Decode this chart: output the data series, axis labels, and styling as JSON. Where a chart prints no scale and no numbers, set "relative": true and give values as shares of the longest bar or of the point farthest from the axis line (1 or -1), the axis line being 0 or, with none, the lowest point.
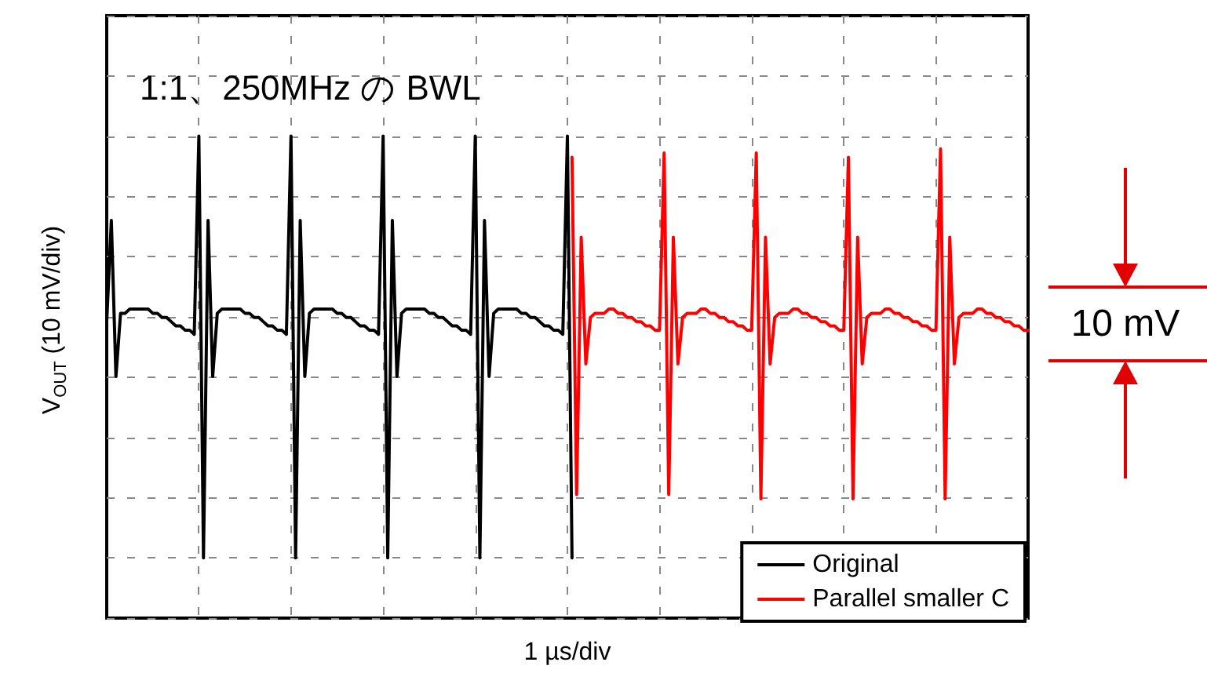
{
  "chart_data": {
    "type": "line",
    "title": "1:1、250MHz の BWL",
    "xlabel": "1 µs/div",
    "ylabel": "V$_{OUT}$ (10 mV/div)",
    "annotations": [
      "10 mV"
    ],
    "relative": true,
    "grid": true,
    "legend": "bottom right",
    "marker": "none",
    "line_style": "solid",
    "categories": [
      null,
      null,
      null,
      null,
      null,
      null,
      null,
      null,
      null,
      null,
      null,
      null,
      null,
      null,
      null,
      null,
      null,
      null,
      null,
      null,
      null,
      null,
      null,
      null,
      null,
      null,
      null,
      null,
      null,
      null,
      null,
      null,
      null,
      null,
      null,
      null,
      null,
      null,
      null,
      null,
      null,
      null,
      null,
      null,
      null,
      null,
      null,
      null,
      null,
      null,
      null,
      null,
      null,
      null,
      null,
      null,
      null,
      null,
      null,
      null,
      null,
      null,
      null,
      null,
      null,
      null,
      null,
      null,
      null,
      null,
      null,
      null,
      null,
      null,
      null,
      null,
      null,
      null,
      null,
      null,
      null,
      null,
      null,
      null,
      null,
      null,
      null,
      null,
      null,
      null,
      null,
      null,
      null,
      null,
      null,
      null,
      null,
      null,
      null,
      null,
      null,
      null,
      null,
      null,
      null,
      null,
      null,
      null,
      null,
      null,
      null,
      null,
      null,
      null,
      null,
      null,
      null,
      null,
      null,
      null,
      null,
      null,
      null,
      null,
      null,
      null,
      null,
      null,
      null,
      null,
      null,
      null,
      null,
      null,
      null,
      null,
      null,
      null,
      null,
      null,
      null,
      null,
      null,
      null,
      null,
      null,
      null,
      null,
      null,
      null,
      null,
      null,
      null,
      null,
      null,
      null,
      null,
      null,
      null,
      null,
      null,
      null,
      null,
      null,
      null,
      null,
      null,
      null,
      null,
      null,
      null,
      null,
      null,
      null,
      null,
      null,
      null,
      null,
      null,
      null,
      null,
      null,
      null,
      null,
      null,
      null,
      null,
      null,
      null,
      null,
      null,
      null,
      null,
      null,
      null,
      null,
      null,
      null,
      null,
      null,
      null
    ],
    "series": [
      {
        "name": "Original",
        "color": "#000000",
        "values": [
          0.56,
          0.8,
          0.43,
          0.58,
          0.58,
          0.59,
          0.59,
          0.59,
          0.59,
          0.59,
          0.58,
          0.58,
          0.57,
          0.57,
          0.56,
          0.55,
          0.55,
          0.54,
          0.54,
          0.53,
          1.0,
          0.0,
          0.8,
          0.43,
          0.58,
          0.59,
          0.59,
          0.59,
          0.59,
          0.59,
          0.58,
          0.58,
          0.57,
          0.57,
          0.56,
          0.55,
          0.55,
          0.54,
          0.54,
          0.53,
          1.0,
          0.0,
          0.8,
          0.43,
          0.58,
          0.59,
          0.59,
          0.59,
          0.59,
          0.59,
          0.58,
          0.58,
          0.57,
          0.57,
          0.56,
          0.55,
          0.55,
          0.54,
          0.54,
          0.53,
          1.0,
          0.0,
          0.8,
          0.43,
          0.58,
          0.59,
          0.59,
          0.59,
          0.59,
          0.59,
          0.58,
          0.58,
          0.57,
          0.57,
          0.56,
          0.55,
          0.55,
          0.54,
          0.54,
          0.53,
          1.0,
          0.0,
          0.8,
          0.43,
          0.58,
          0.59,
          0.59,
          0.59,
          0.59,
          0.59,
          0.58,
          0.58,
          0.57,
          0.57,
          0.56,
          0.55,
          0.55,
          0.54,
          0.54,
          0.53,
          1.0,
          0.0,
          null,
          null,
          null,
          null,
          null,
          null,
          null,
          null,
          null,
          null,
          null,
          null,
          null,
          null,
          null,
          null,
          null,
          null,
          null,
          null,
          null,
          null,
          null,
          null,
          null,
          null,
          null,
          null,
          null,
          null,
          null,
          null,
          null,
          null,
          null,
          null,
          null,
          null,
          null,
          null,
          null,
          null,
          null,
          null,
          null,
          null,
          null,
          null,
          null,
          null,
          null,
          null,
          null,
          null,
          null,
          null,
          null,
          null,
          null,
          null,
          null,
          null,
          null,
          null,
          null,
          null,
          null,
          null,
          null,
          null,
          null,
          null,
          null,
          null,
          null,
          null,
          null,
          null,
          null,
          null,
          null,
          null,
          null,
          null,
          null,
          null,
          null,
          null,
          null,
          null,
          null,
          null,
          null,
          null,
          null,
          null,
          null,
          null,
          null
        ]
      },
      {
        "name": "Parallel smaller C",
        "color": "#ff0000",
        "values": [
          null,
          null,
          null,
          null,
          null,
          null,
          null,
          null,
          null,
          null,
          null,
          null,
          null,
          null,
          null,
          null,
          null,
          null,
          null,
          null,
          null,
          null,
          null,
          null,
          null,
          null,
          null,
          null,
          null,
          null,
          null,
          null,
          null,
          null,
          null,
          null,
          null,
          null,
          null,
          null,
          null,
          null,
          null,
          null,
          null,
          null,
          null,
          null,
          null,
          null,
          null,
          null,
          null,
          null,
          null,
          null,
          null,
          null,
          null,
          null,
          null,
          null,
          null,
          null,
          null,
          null,
          null,
          null,
          null,
          null,
          null,
          null,
          null,
          null,
          null,
          null,
          null,
          null,
          null,
          null,
          null,
          null,
          null,
          null,
          null,
          null,
          null,
          null,
          null,
          null,
          null,
          null,
          null,
          null,
          null,
          null,
          null,
          null,
          null,
          null,
          null,
          0.95,
          0.15,
          0.76,
          0.46,
          0.57,
          0.58,
          0.58,
          0.58,
          0.59,
          0.59,
          0.58,
          0.58,
          0.57,
          0.57,
          0.56,
          0.56,
          0.55,
          0.55,
          0.54,
          0.54,
          0.96,
          0.15,
          0.76,
          0.46,
          0.57,
          0.58,
          0.58,
          0.58,
          0.59,
          0.59,
          0.58,
          0.58,
          0.57,
          0.57,
          0.56,
          0.56,
          0.55,
          0.55,
          0.54,
          0.54,
          0.96,
          0.14,
          0.76,
          0.46,
          0.57,
          0.58,
          0.58,
          0.58,
          0.59,
          0.59,
          0.58,
          0.58,
          0.57,
          0.57,
          0.56,
          0.56,
          0.55,
          0.55,
          0.54,
          0.54,
          0.95,
          0.14,
          0.76,
          0.46,
          0.57,
          0.58,
          0.58,
          0.58,
          0.59,
          0.59,
          0.58,
          0.58,
          0.57,
          0.57,
          0.56,
          0.56,
          0.55,
          0.55,
          0.54,
          0.54,
          0.97,
          0.14,
          0.76,
          0.46,
          0.57,
          0.58,
          0.58,
          0.58,
          0.59,
          0.59,
          0.58,
          0.58,
          0.57,
          0.57,
          0.56,
          0.56,
          0.55,
          0.55,
          0.54,
          0.54
        ]
      }
    ]
  }
}
